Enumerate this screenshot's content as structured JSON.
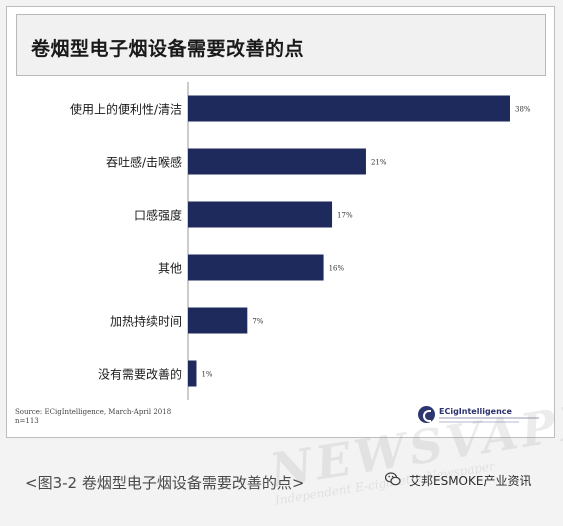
{
  "header": {
    "title": "卷烟型电子烟设备需要改善的点"
  },
  "chart_data": {
    "type": "bar",
    "orientation": "horizontal",
    "title": "卷烟型电子烟设备需要改善的点",
    "categories": [
      "使用上的便利性/清洁",
      "吞吐感/击喉感",
      "口感强度",
      "其他",
      "加热持续时间",
      "没有需要改善的"
    ],
    "values": [
      38,
      21,
      17,
      16,
      7,
      1
    ],
    "labels": [
      "38%",
      "21%",
      "17%",
      "16%",
      "7%",
      "1%"
    ],
    "unit": "%",
    "xlim": [
      0,
      38
    ],
    "grid": false,
    "bar_color": "#1f2a5c"
  },
  "source": {
    "line1": "Source: ECigIntelligence, March-April 2018",
    "line2": "n=113"
  },
  "logo": {
    "text": "ECigIntelligence"
  },
  "caption": "<图3-2 卷烟型电子烟设备需要改善的点>",
  "account": {
    "icon": "wechat-icon",
    "name": "艾邦ESMOKE产业资讯"
  },
  "colors": {
    "bar": "#1f2a5c",
    "axis": "#9a9a9a",
    "label": "#1a1a1a"
  }
}
